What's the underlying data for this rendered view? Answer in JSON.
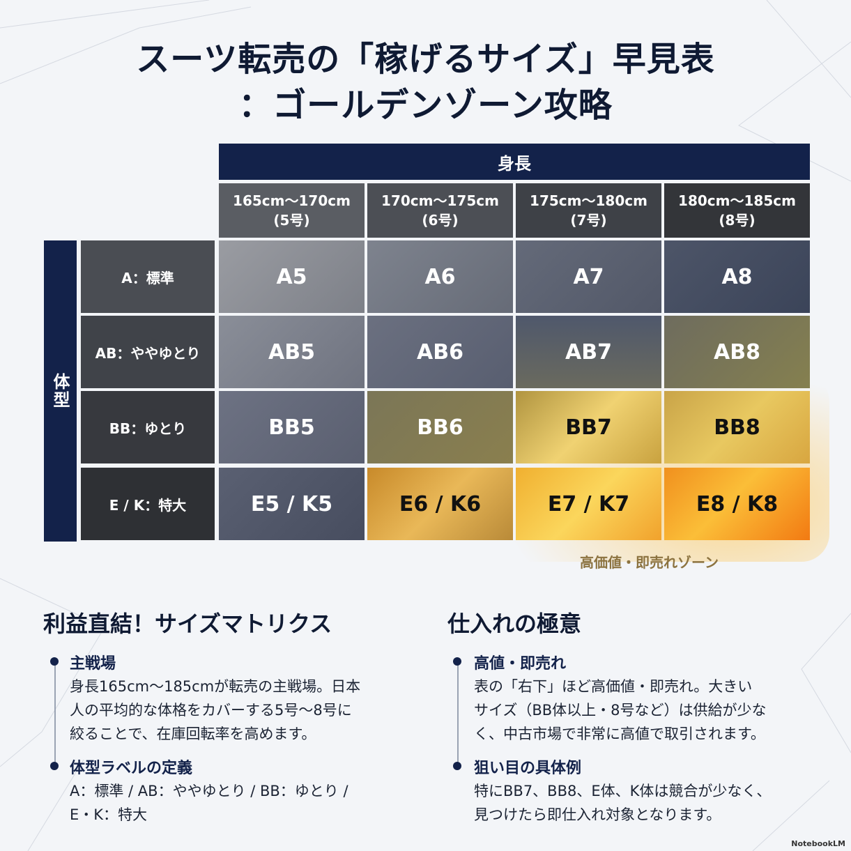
{
  "title": {
    "line1": "スーツ転売の「稼げるサイズ」早見表",
    "line2": "：ゴールデンゾーン攻略"
  },
  "matrix": {
    "column_axis_label": "身長",
    "row_axis_label": "体型",
    "columns": [
      {
        "range": "165cm〜170cm",
        "code": "(5号)"
      },
      {
        "range": "170cm〜175cm",
        "code": "(6号)"
      },
      {
        "range": "175cm〜180cm",
        "code": "(7号)"
      },
      {
        "range": "180cm〜185cm",
        "code": "(8号)"
      }
    ],
    "rows": [
      {
        "label": "A：標準",
        "cells": [
          "A5",
          "A6",
          "A7",
          "A8"
        ]
      },
      {
        "label": "AB：ややゆとり",
        "cells": [
          "AB5",
          "AB6",
          "AB7",
          "AB8"
        ]
      },
      {
        "label": "BB：ゆとり",
        "cells": [
          "BB5",
          "BB6",
          "BB7",
          "BB8"
        ]
      },
      {
        "label": "E / K：特大",
        "cells": [
          "E5 / K5",
          "E6 / K6",
          "E7 / K7",
          "E8 / K8"
        ]
      }
    ],
    "zone_label": "高価値・即売れゾーン",
    "colors": {
      "header_navy": "#13224a",
      "gold": "#e8c24a",
      "orange": "#f39a1c"
    }
  },
  "left_section": {
    "title": "利益直結！サイズマトリクス",
    "items": [
      {
        "title": "主戦場",
        "lines": [
          "身長165cm〜185cmが転売の主戦場。日本",
          "人の平均的な体格をカバーする5号〜8号に",
          "絞ることで、在庫回転率を高めます。"
        ]
      },
      {
        "title": "体型ラベルの定義",
        "lines": [
          "A：標準 / AB：ややゆとり / BB：ゆとり /",
          "E・K：特大"
        ]
      }
    ]
  },
  "right_section": {
    "title": "仕入れの極意",
    "items": [
      {
        "title": "高値・即売れ",
        "lines": [
          "表の「右下」ほど高価値・即売れ。大きい",
          "サイズ（BB体以上・8号など）は供給が少な",
          "く、中古市場で非常に高値で取引されます。"
        ]
      },
      {
        "title": "狙い目の具体例",
        "lines": [
          "特にBB7、BB8、E体、K体は競合が少なく、",
          "見つけたら即仕入れ対象となります。"
        ]
      }
    ]
  },
  "brand": "NotebookLM"
}
